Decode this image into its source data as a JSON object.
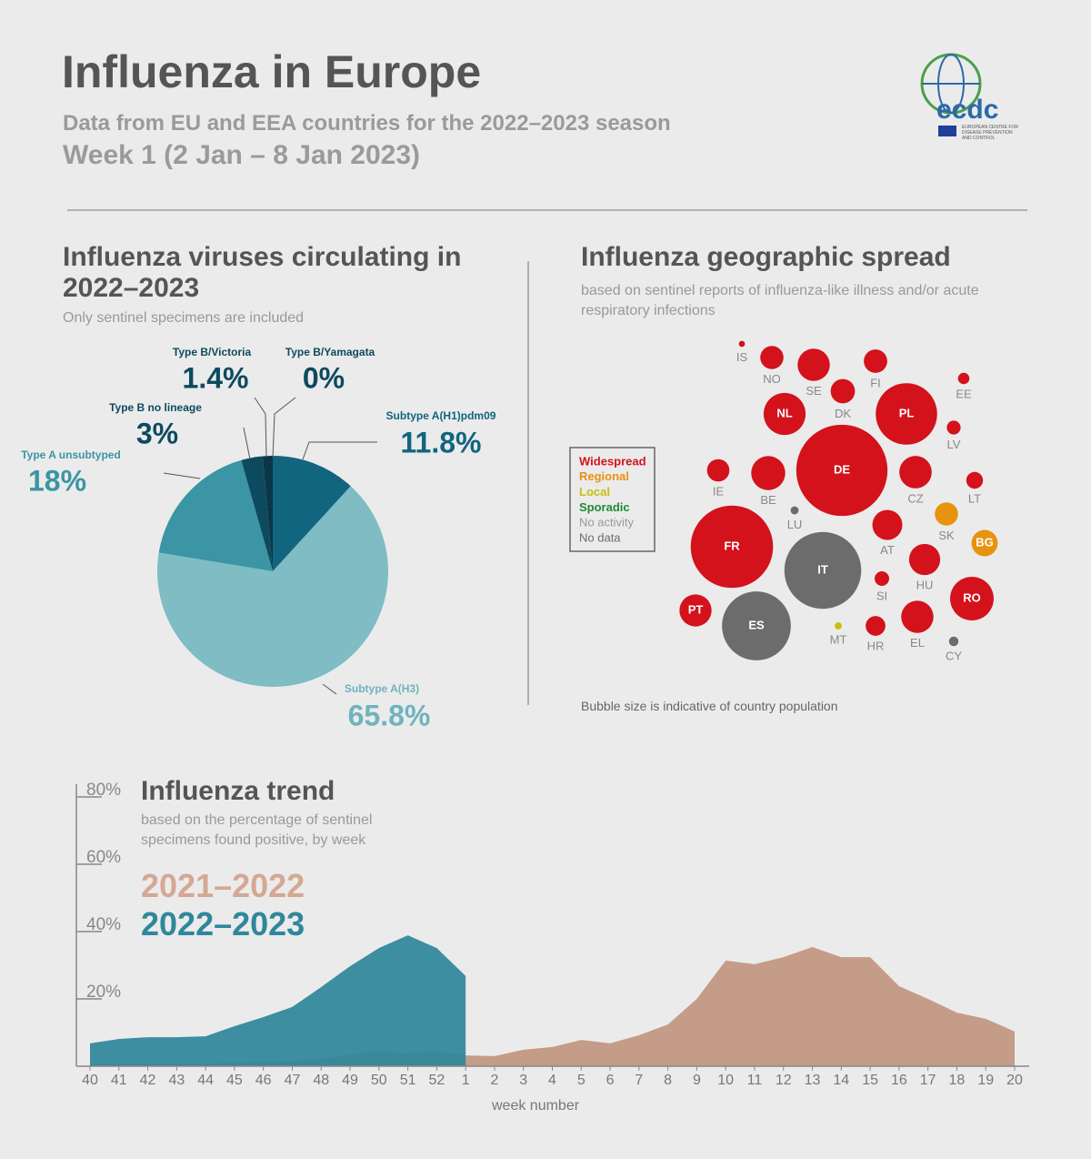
{
  "header": {
    "title": "Influenza in Europe",
    "subtitle": "Data from EU and EEA countries for the 2022–2023 season",
    "week": "Week 1 (2 Jan – 8 Jan 2023)",
    "logo": "ecdc",
    "logo_caption": "EUROPEAN CENTRE FOR DISEASE PREVENTION AND CONTROL"
  },
  "chart_data": [
    {
      "type": "pie",
      "title": "Influenza viruses circulating in 2022–2023",
      "subtitle": "Only sentinel specimens are included",
      "categories": [
        "Subtype A(H1)pdm09",
        "Subtype A(H3)",
        "Type A unsubtyped",
        "Type B no lineage",
        "Type B/Victoria",
        "Type B/Yamagata"
      ],
      "values": [
        11.8,
        65.8,
        18,
        3,
        1.4,
        0
      ],
      "value_labels": [
        "11.8%",
        "65.8%",
        "18%",
        "3%",
        "1.4%",
        "0%"
      ],
      "colors": [
        "#11657f",
        "#7fbcc4",
        "#3b95a4",
        "#0d4a5f",
        "#0a3747",
        "#0a3747"
      ]
    },
    {
      "type": "bubble",
      "title": "Influenza geographic spread",
      "subtitle": "based on sentinel reports of influenza-like illness and/or acute respiratory infections",
      "statuses": [
        "Widespread",
        "Regional",
        "Local",
        "Sporadic",
        "No activity",
        "No data"
      ],
      "status_colors": [
        "#d3121c",
        "#e8930f",
        "#c8c010",
        "#1f8a35",
        "#9a9a9a",
        "#6c6c6c"
      ],
      "countries": [
        "IS",
        "NO",
        "SE",
        "FI",
        "DK",
        "EE",
        "NL",
        "PL",
        "LV",
        "DE",
        "IE",
        "BE",
        "CZ",
        "LT",
        "LU",
        "SK",
        "BG",
        "FR",
        "IT",
        "AT",
        "HU",
        "SI",
        "RO",
        "PT",
        "ES",
        "MT",
        "HR",
        "EL",
        "CY"
      ],
      "status": [
        "Widespread",
        "Widespread",
        "Widespread",
        "Widespread",
        "Widespread",
        "Widespread",
        "Widespread",
        "Widespread",
        "Widespread",
        "Widespread",
        "Widespread",
        "Widespread",
        "Widespread",
        "Widespread",
        "No data",
        "Regional",
        "Regional",
        "Widespread",
        "No data",
        "Widespread",
        "Widespread",
        "Widespread",
        "Widespread",
        "Widespread",
        "No data",
        "Local",
        "Widespread",
        "Widespread",
        "No data"
      ],
      "values": [
        0.38,
        5.4,
        10.4,
        5.5,
        5.9,
        1.3,
        17.6,
        37.7,
        1.9,
        83.2,
        5.0,
        11.6,
        10.5,
        2.8,
        0.64,
        5.4,
        6.9,
        67.8,
        59.0,
        9.0,
        9.7,
        2.1,
        19.0,
        10.3,
        47.4,
        0.52,
        3.9,
        10.4,
        0.9
      ],
      "note": "Bubble size is indicative of country population"
    },
    {
      "type": "area",
      "title": "Influenza trend",
      "subtitle": "based on the percentage of sentinel specimens found positive, by week",
      "x_label": "week number",
      "categories": [
        "40",
        "41",
        "42",
        "43",
        "44",
        "45",
        "46",
        "47",
        "48",
        "49",
        "50",
        "51",
        "52",
        "1",
        "2",
        "3",
        "4",
        "5",
        "6",
        "7",
        "8",
        "9",
        "10",
        "11",
        "12",
        "13",
        "14",
        "15",
        "16",
        "17",
        "18",
        "19",
        "20"
      ],
      "series": [
        {
          "name": "2021–2022",
          "color": "#c49c88",
          "values": [
            0.5,
            0.5,
            0.6,
            0.7,
            0.8,
            1,
            1.2,
            1.5,
            2.2,
            3.5,
            4.5,
            3.8,
            4.5,
            3.2,
            3.0,
            4.9,
            5.7,
            7.8,
            6.8,
            9.2,
            12.4,
            20,
            31.4,
            30.3,
            32.4,
            35.4,
            32.4,
            32.4,
            23.8,
            20,
            15.9,
            14.1,
            10.3
          ]
        },
        {
          "name": "2022–2023",
          "color": "#2f879b",
          "values": [
            6.8,
            8.1,
            8.6,
            8.6,
            8.9,
            11.9,
            14.6,
            17.6,
            23.5,
            29.7,
            35.1,
            38.9,
            35.1,
            26.8,
            null,
            null,
            null,
            null,
            null,
            null,
            null,
            null,
            null,
            null,
            null,
            null,
            null,
            null,
            null,
            null,
            null,
            null,
            null
          ]
        }
      ],
      "ylim": [
        0,
        80
      ],
      "yticks": [
        {
          "value": 20,
          "label": "20%"
        },
        {
          "value": 40,
          "label": "40%"
        },
        {
          "value": 60,
          "label": "60%"
        },
        {
          "value": 80,
          "label": "80%"
        }
      ]
    }
  ]
}
